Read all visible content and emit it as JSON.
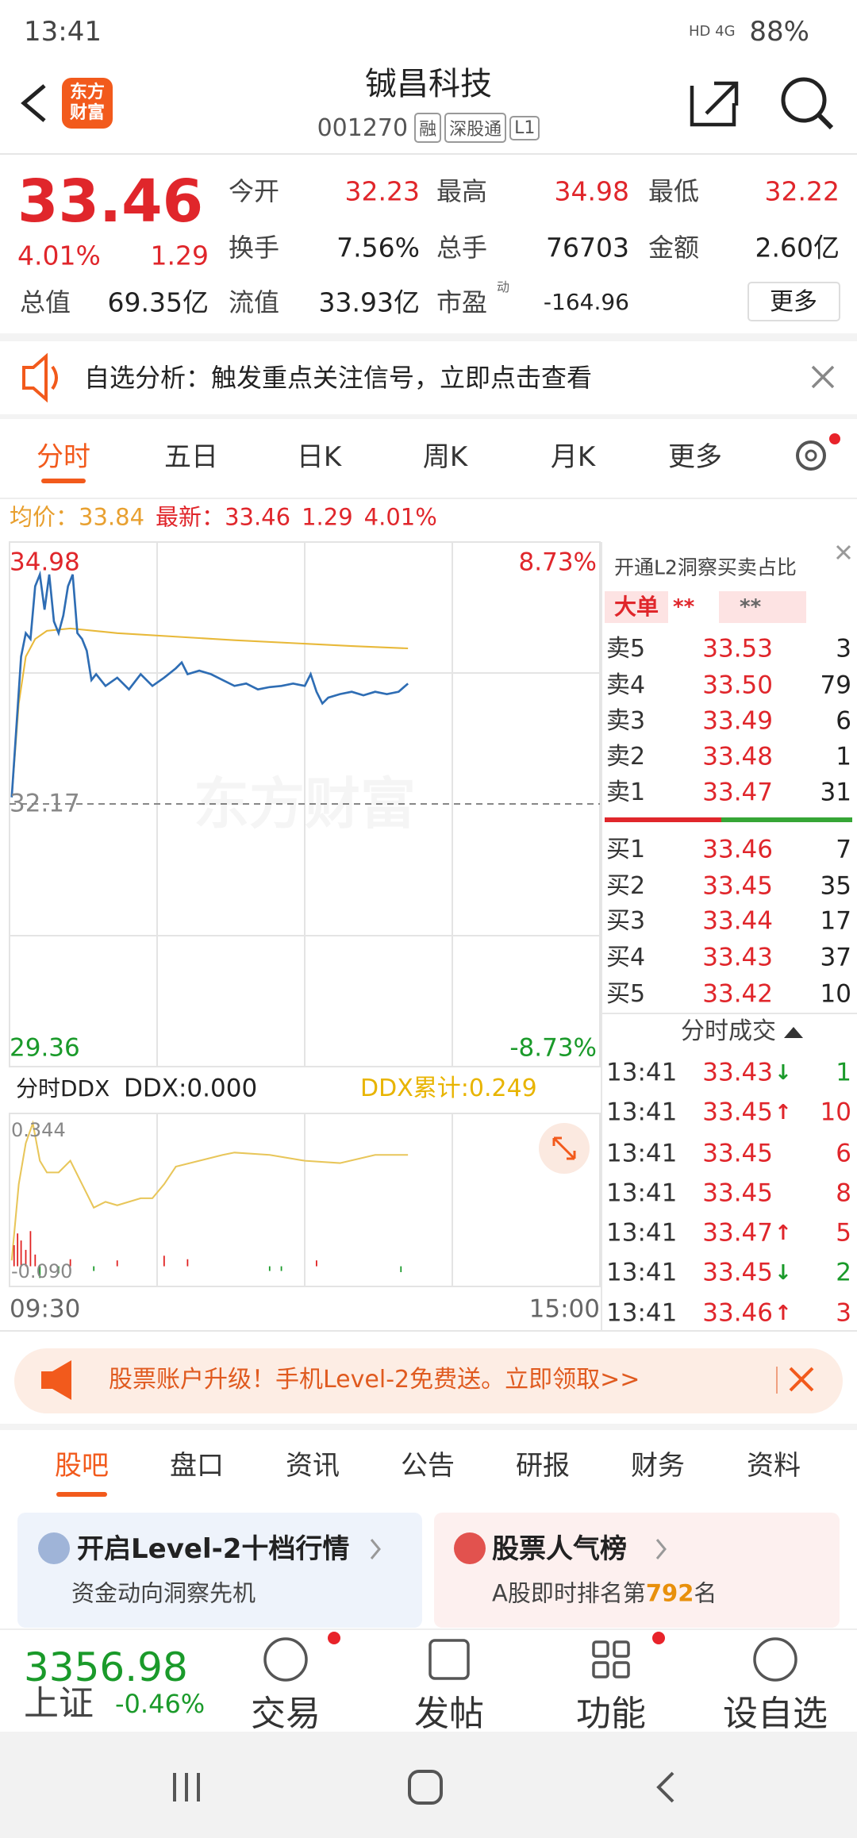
{
  "status_bar": {
    "time": "13:41",
    "network": "HD 4G",
    "battery": "88%"
  },
  "header": {
    "logo": "东方财富",
    "title": "铖昌科技",
    "code": "001270",
    "tags": [
      "融",
      "深股通",
      "L1"
    ]
  },
  "quote": {
    "price": "33.46",
    "change_pct": "4.01%",
    "change": "1.29",
    "stats": [
      [
        "今开",
        "32.23"
      ],
      [
        "最高",
        "34.98"
      ],
      [
        "最低",
        "32.22"
      ],
      [
        "换手",
        "7.56%"
      ],
      [
        "总手",
        "76703"
      ],
      [
        "金额",
        "2.60亿"
      ],
      [
        "总值",
        "69.35亿"
      ],
      [
        "流值",
        "33.93亿"
      ],
      [
        "市盈",
        "-164.96"
      ]
    ],
    "pe_badge": "动",
    "more": "更多"
  },
  "notice": "自选分析：触发重点关注信号，立即点击查看",
  "tabs": [
    "分时",
    "五日",
    "日K",
    "周K",
    "月K",
    "更多"
  ],
  "summary": {
    "avg_label": "均价：",
    "avg": "33.84",
    "latest_label": "最新：",
    "latest": "33.46",
    "change": "1.29",
    "change_pct": "4.01%"
  },
  "chart": {
    "y_high": "34.98",
    "y_mid": "32.17",
    "y_low": "29.36",
    "pct_high": "8.73%",
    "pct_low": "-8.73%",
    "watermark": "东方财富",
    "x_start": "09:30",
    "x_end": "15:00"
  },
  "ddx": {
    "selector": "分时DDX",
    "ddx": "DDX:0.000",
    "ddx_total": "DDX累计:0.249",
    "y_high": "0.344",
    "y_low": "-0.090"
  },
  "order_book": {
    "l2_link": "开通L2洞察买卖占比",
    "big_order": "大单",
    "masked_1": "**",
    "masked_2": "**",
    "asks": [
      [
        "卖5",
        "33.53",
        "3"
      ],
      [
        "卖4",
        "33.50",
        "79"
      ],
      [
        "卖3",
        "33.49",
        "6"
      ],
      [
        "卖2",
        "33.48",
        "1"
      ],
      [
        "卖1",
        "33.47",
        "31"
      ]
    ],
    "bids": [
      [
        "买1",
        "33.46",
        "7"
      ],
      [
        "买2",
        "33.45",
        "35"
      ],
      [
        "买3",
        "33.44",
        "17"
      ],
      [
        "买4",
        "33.43",
        "37"
      ],
      [
        "买5",
        "33.42",
        "10"
      ]
    ]
  },
  "trades": {
    "title": "分时成交",
    "rows": [
      {
        "time": "13:41",
        "price": "33.43",
        "arrow": "↓",
        "volume": "1"
      },
      {
        "time": "13:41",
        "price": "33.45",
        "arrow": "↑",
        "volume": "10"
      },
      {
        "time": "13:41",
        "price": "33.45",
        "volume": "6"
      },
      {
        "time": "13:41",
        "price": "33.45",
        "volume": "8"
      },
      {
        "time": "13:41",
        "price": "33.47",
        "arrow": "↑",
        "volume": "5"
      },
      {
        "time": "13:41",
        "price": "33.45",
        "arrow": "↓",
        "volume": "2"
      },
      {
        "time": "13:41",
        "price": "33.46",
        "arrow": "↑",
        "volume": "3"
      }
    ]
  },
  "banner": "股票账户升级！手机Level-2免费送。立即领取>>",
  "bottom_tabs": [
    "股吧",
    "盘口",
    "资讯",
    "公告",
    "研报",
    "财务",
    "资料"
  ],
  "cards": [
    {
      "title": "开启Level-2十档行情",
      "subtitle": "资金动向洞察先机"
    },
    {
      "title": "股票人气榜",
      "subtitle_pre": "A股即时排名第",
      "rank": "792",
      "subtitle_post": "名"
    }
  ],
  "index": {
    "value": "3356.98",
    "name": "上证",
    "change_pct": "-0.46%"
  },
  "nav": [
    "交易",
    "发帖",
    "功能",
    "设自选"
  ]
}
